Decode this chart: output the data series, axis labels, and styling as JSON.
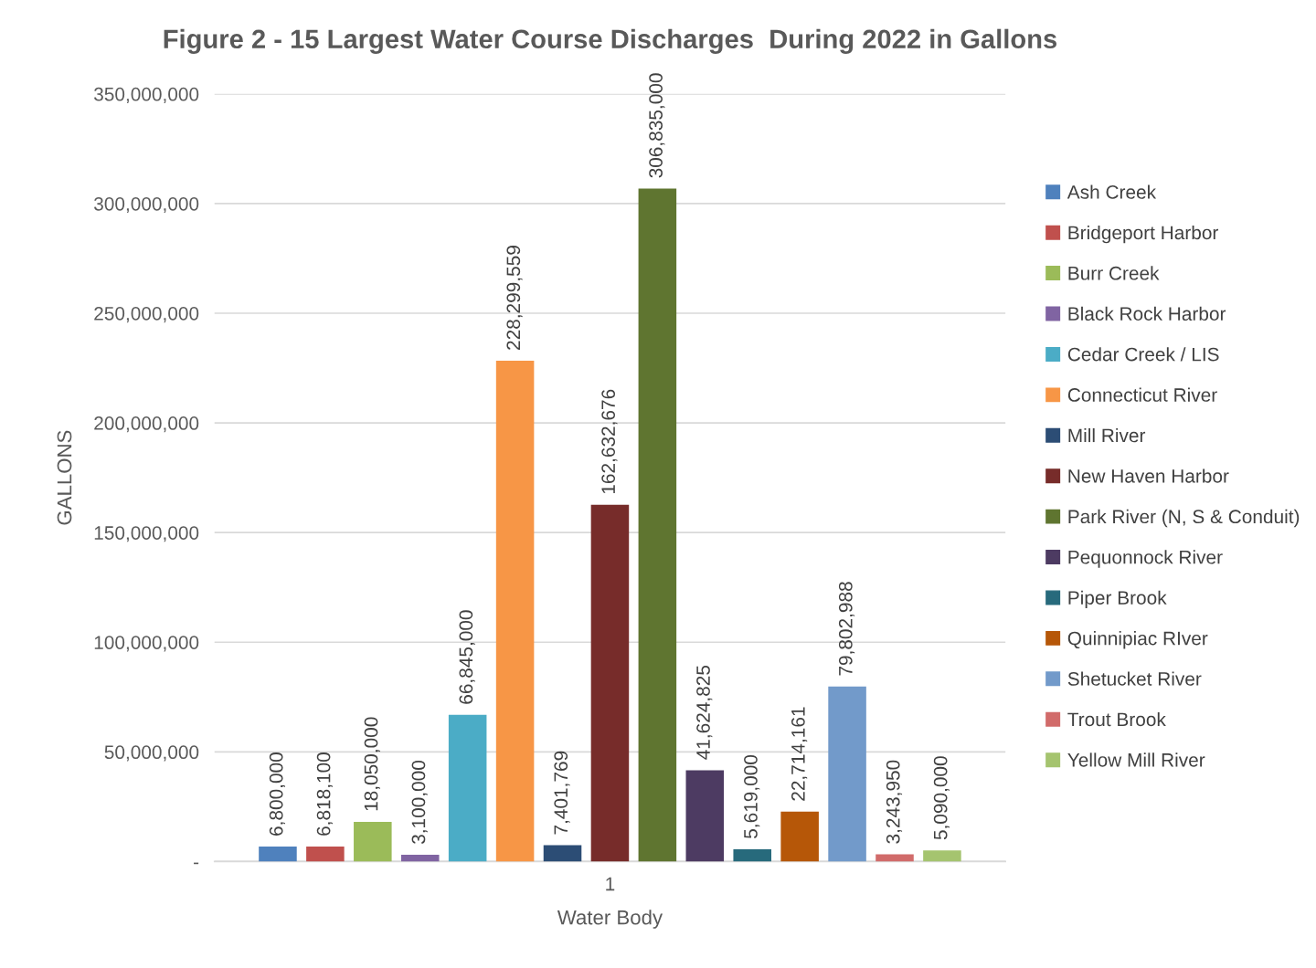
{
  "chart_data": {
    "type": "bar",
    "title": "Figure 2 - 15 Largest Water Course Discharges  During 2022 in Gallons",
    "xlabel": "Water Body",
    "ylabel": "GALLONS",
    "categories": [
      "1"
    ],
    "series": [
      {
        "name": "Ash Creek",
        "color": "#4f81bd",
        "values": [
          6800000
        ],
        "value_labels": [
          "6,800,000"
        ]
      },
      {
        "name": "Bridgeport Harbor",
        "color": "#c0504d",
        "values": [
          6818100
        ],
        "value_labels": [
          "6,818,100"
        ]
      },
      {
        "name": "Burr Creek",
        "color": "#9bbb59",
        "values": [
          18050000
        ],
        "value_labels": [
          "18,050,000"
        ]
      },
      {
        "name": "Black Rock Harbor",
        "color": "#8064a2",
        "values": [
          3100000
        ],
        "value_labels": [
          "3,100,000"
        ]
      },
      {
        "name": "Cedar Creek / LIS",
        "color": "#4bacc6",
        "values": [
          66845000
        ],
        "value_labels": [
          "66,845,000"
        ]
      },
      {
        "name": "Connecticut River",
        "color": "#f79646",
        "values": [
          228299559
        ],
        "value_labels": [
          "228,299,559"
        ]
      },
      {
        "name": "Mill River",
        "color": "#2c4d75",
        "values": [
          7401769
        ],
        "value_labels": [
          "7,401,769"
        ]
      },
      {
        "name": "New Haven Harbor",
        "color": "#772c2a",
        "values": [
          162632676
        ],
        "value_labels": [
          "162,632,676"
        ]
      },
      {
        "name": "Park River (N, S & Conduit)",
        "color": "#5f7530",
        "values": [
          306835000
        ],
        "value_labels": [
          "306,835,000"
        ]
      },
      {
        "name": "Pequonnock River",
        "color": "#4d3b62",
        "values": [
          41624825
        ],
        "value_labels": [
          "41,624,825"
        ]
      },
      {
        "name": "Piper Brook",
        "color": "#276a7c",
        "values": [
          5619000
        ],
        "value_labels": [
          "5,619,000"
        ]
      },
      {
        "name": "Quinnipiac RIver",
        "color": "#b65708",
        "values": [
          22714161
        ],
        "value_labels": [
          "22,714,161"
        ]
      },
      {
        "name": "Shetucket River",
        "color": "#729aca",
        "values": [
          79802988
        ],
        "value_labels": [
          "79,802,988"
        ]
      },
      {
        "name": "Trout Brook",
        "color": "#d16b6a",
        "values": [
          3243950
        ],
        "value_labels": [
          "3,243,950"
        ]
      },
      {
        "name": "Yellow Mill River",
        "color": "#a5c46f",
        "values": [
          5090000
        ],
        "value_labels": [
          "5,090,000"
        ]
      }
    ],
    "ylim": [
      0,
      350000000
    ],
    "yticks": [
      {
        "value": 0,
        "label": "-"
      },
      {
        "value": 50000000,
        "label": "50,000,000"
      },
      {
        "value": 100000000,
        "label": "100,000,000"
      },
      {
        "value": 150000000,
        "label": "150,000,000"
      },
      {
        "value": 200000000,
        "label": "200,000,000"
      },
      {
        "value": 250000000,
        "label": "250,000,000"
      },
      {
        "value": 300000000,
        "label": "300,000,000"
      },
      {
        "value": 350000000,
        "label": "350,000,000"
      }
    ],
    "grid": "y",
    "legend": "right"
  }
}
